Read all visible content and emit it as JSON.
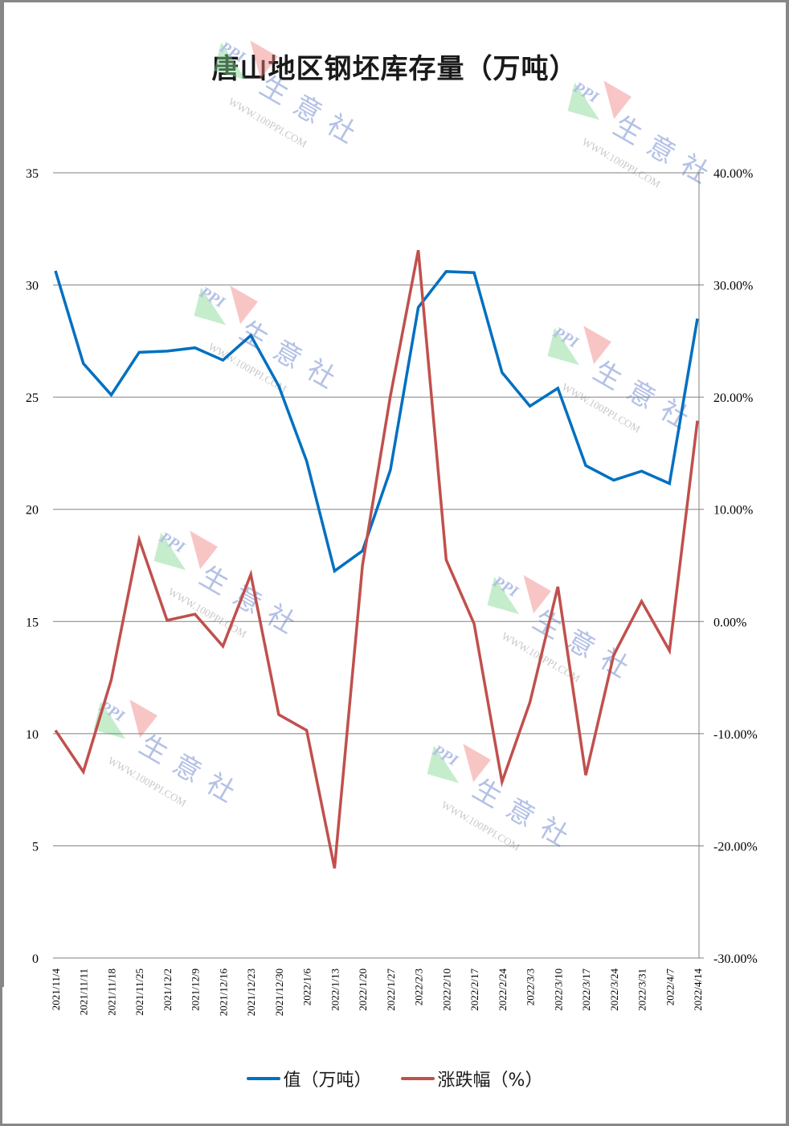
{
  "chart_data": {
    "type": "line",
    "title": "唐山地区钢坯库存量（万吨）",
    "xlabel": "",
    "ylabel": "",
    "y2label": "",
    "ylim": [
      0,
      35
    ],
    "y2lim": [
      -0.3,
      0.4
    ],
    "yticks": [
      "0",
      "5",
      "10",
      "15",
      "20",
      "25",
      "30",
      "35"
    ],
    "y2ticks": [
      "-30.00%",
      "-20.00%",
      "-10.00%",
      "0.00%",
      "10.00%",
      "20.00%",
      "30.00%",
      "40.00%"
    ],
    "grid": true,
    "legend_position": "bottom",
    "categories": [
      "2021/11/4",
      "2021/11/11",
      "2021/11/18",
      "2021/11/25",
      "2021/12/2",
      "2021/12/9",
      "2021/12/16",
      "2021/12/23",
      "2021/12/30",
      "2022/1/6",
      "2022/1/13",
      "2022/1/20",
      "2022/1/27",
      "2022/2/3",
      "2022/2/10",
      "2022/2/17",
      "2022/2/24",
      "2022/3/3",
      "2022/3/10",
      "2022/3/17",
      "2022/3/24",
      "2022/3/31",
      "2022/4/7",
      "2022/4/14"
    ],
    "series": [
      {
        "name": "值（万吨）",
        "axis": "left",
        "color": "#0070C0",
        "values": [
          30.63,
          26.5,
          25.1,
          27.0,
          27.05,
          27.2,
          26.65,
          27.75,
          25.5,
          22.15,
          17.25,
          18.15,
          21.75,
          29.0,
          30.6,
          30.55,
          26.1,
          24.6,
          25.4,
          21.95,
          21.3,
          21.7,
          21.15,
          28.5
        ]
      },
      {
        "name": "涨跌幅（%）",
        "axis": "right",
        "color": "#C0504D",
        "values": [
          -9.7,
          -13.4,
          -5.2,
          7.3,
          0.1,
          0.65,
          -2.2,
          4.2,
          -8.3,
          -9.7,
          -22.0,
          5.0,
          20.1,
          33.1,
          5.5,
          -0.2,
          -14.3,
          -7.2,
          3.1,
          -13.7,
          -3.0,
          1.8,
          -2.6,
          17.9
        ]
      }
    ]
  },
  "watermark": {
    "brand": "生意社",
    "logo_text": "PPI",
    "url": "WWW.100PPI.COM"
  }
}
